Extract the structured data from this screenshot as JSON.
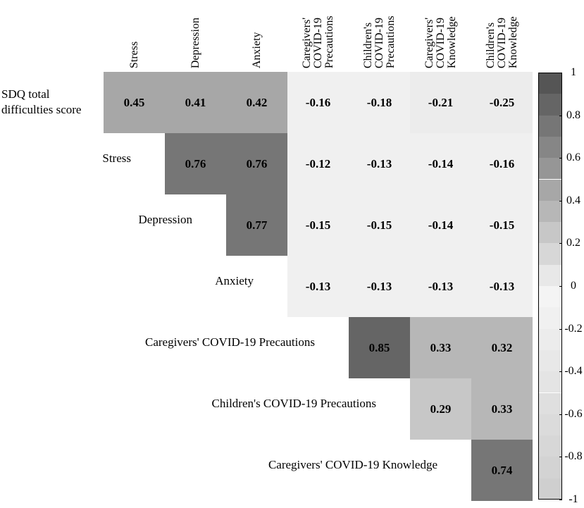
{
  "chart_data": {
    "type": "heatmap",
    "columns": [
      "Stress",
      "Depression",
      "Anxiety",
      "Caregivers' COVID-19 Precautions",
      "Children's COVID-19 Precautions",
      "Caregivers' COVID-19 Knowledge",
      "Children's COVID-19 Knowledge"
    ],
    "rows": [
      "SDQ total difficulties score",
      "Stress",
      "Depression",
      "Anxiety",
      "Caregivers' COVID-19 Precautions",
      "Children's COVID-19 Precautions",
      "Caregivers' COVID-19 Knowledge"
    ],
    "values": [
      [
        0.45,
        0.41,
        0.42,
        -0.16,
        -0.18,
        -0.21,
        -0.25
      ],
      [
        null,
        0.76,
        0.76,
        -0.12,
        -0.13,
        -0.14,
        -0.16
      ],
      [
        null,
        null,
        0.77,
        -0.15,
        -0.15,
        -0.14,
        -0.15
      ],
      [
        null,
        null,
        null,
        -0.13,
        -0.13,
        -0.13,
        -0.13
      ],
      [
        null,
        null,
        null,
        null,
        0.85,
        0.33,
        0.32
      ],
      [
        null,
        null,
        null,
        null,
        null,
        0.29,
        0.33
      ],
      [
        null,
        null,
        null,
        null,
        null,
        null,
        0.74
      ]
    ],
    "colormap": {
      "low": "#cfcfcf",
      "mid": "#f8f8f8",
      "high": "#555555"
    },
    "colorbar_lim": [
      -1,
      1
    ],
    "colorbar_ticks": [
      1,
      0.8,
      0.6,
      0.4,
      0.2,
      0,
      -0.2,
      -0.4,
      -0.6,
      -0.8,
      -1
    ]
  }
}
